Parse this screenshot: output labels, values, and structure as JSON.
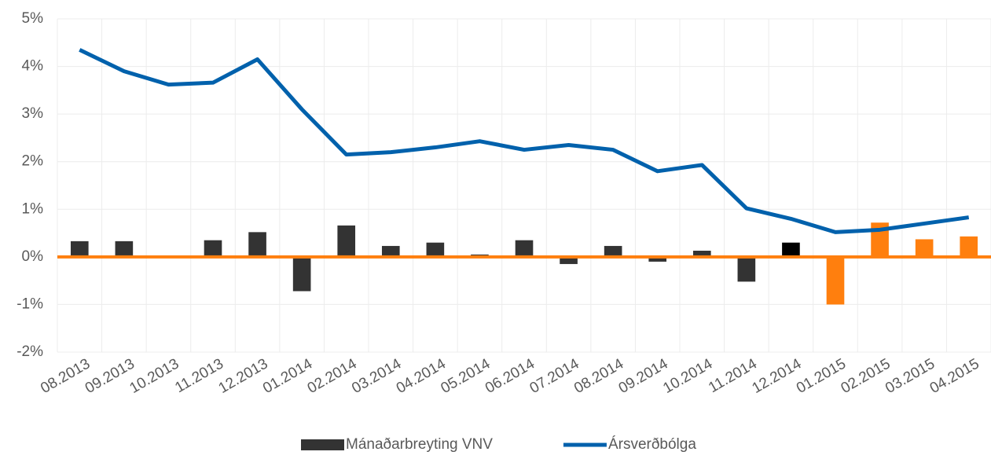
{
  "chart_data": {
    "type": "bar_line",
    "categories": [
      "08.2013",
      "09.2013",
      "10.2013",
      "11.2013",
      "12.2013",
      "01.2014",
      "02.2014",
      "03.2014",
      "04.2014",
      "05.2014",
      "06.2014",
      "07.2014",
      "08.2014",
      "09.2014",
      "10.2014",
      "11.2014",
      "12.2014",
      "01.2015",
      "02.2015",
      "03.2015",
      "04.2015"
    ],
    "series": [
      {
        "name": "Mánaðarbreyting VNV",
        "type": "bar",
        "color": "#333333",
        "colors": [
          "#333333",
          "#333333",
          "#333333",
          "#333333",
          "#333333",
          "#333333",
          "#333333",
          "#333333",
          "#333333",
          "#333333",
          "#333333",
          "#333333",
          "#333333",
          "#333333",
          "#333333",
          "#333333",
          "#000000",
          "#ff7f0e",
          "#ff7f0e",
          "#ff7f0e",
          "#ff7f0e"
        ],
        "values": [
          0.33,
          0.33,
          0,
          0.35,
          0.52,
          -0.72,
          0.66,
          0.23,
          0.3,
          0.05,
          0.35,
          -0.15,
          0.23,
          -0.1,
          0.13,
          -0.52,
          0.3,
          -1.0,
          0.72,
          0.37,
          0.43
        ]
      },
      {
        "name": "Ársverðbólga",
        "type": "line",
        "color": "#0061ac",
        "values": [
          4.35,
          3.9,
          3.62,
          3.66,
          4.15,
          3.1,
          2.15,
          2.2,
          2.3,
          2.43,
          2.25,
          2.35,
          2.25,
          1.8,
          1.93,
          1.02,
          0.8,
          0.52,
          0.57,
          0.7,
          0.83
        ]
      }
    ],
    "ylim": [
      -2,
      5
    ],
    "yticks": [
      {
        "value": -2,
        "label": "-2%"
      },
      {
        "value": -1,
        "label": "-1%"
      },
      {
        "value": 0,
        "label": "0%"
      },
      {
        "value": 1,
        "label": "1%"
      },
      {
        "value": 2,
        "label": "2%"
      },
      {
        "value": 3,
        "label": "3%"
      },
      {
        "value": 4,
        "label": "4%"
      },
      {
        "value": 5,
        "label": "5%"
      }
    ],
    "grid": true,
    "zero_line_color": "#ff7f0e",
    "legend": "bottom"
  }
}
